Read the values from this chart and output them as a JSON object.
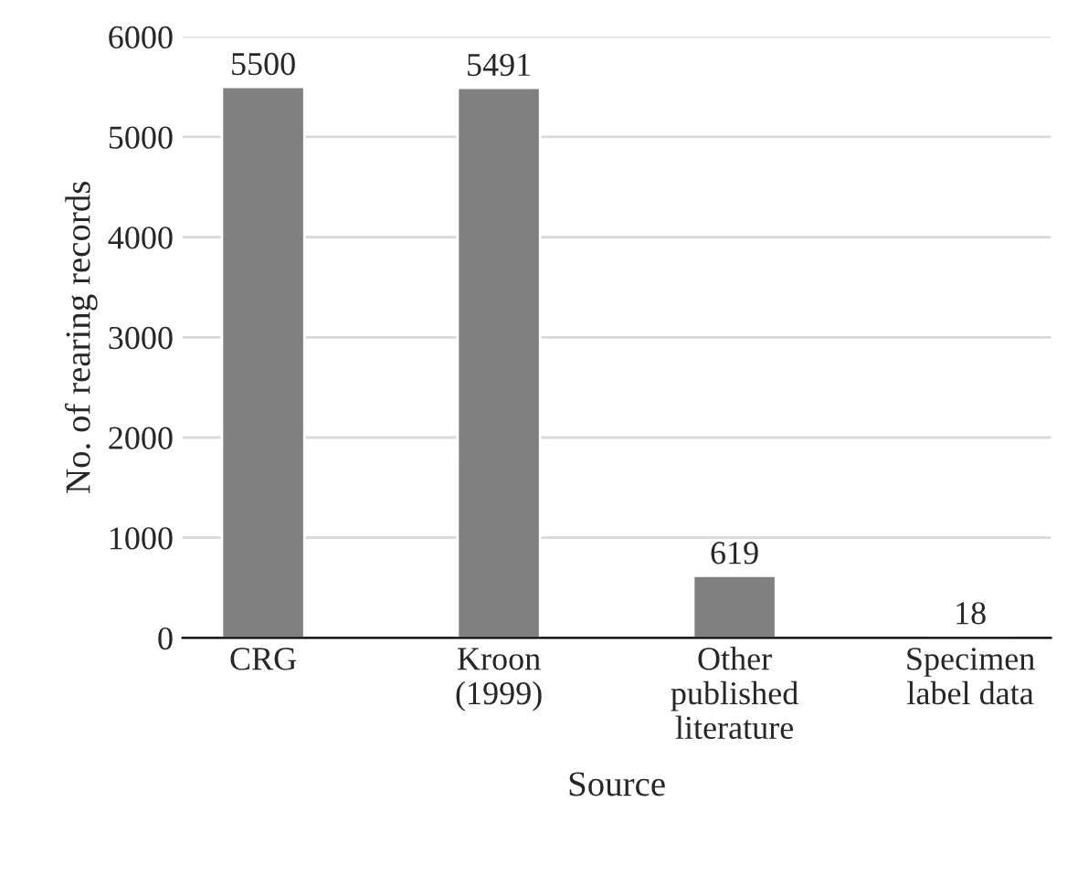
{
  "chart_data": {
    "type": "bar",
    "xlabel": "Source",
    "ylabel": "No. of rearing records",
    "categories": [
      "CRG",
      "Kroon\n(1999)",
      "Other\npublished\nliterature",
      "Specimen\nlabel data"
    ],
    "values": [
      5500,
      5491,
      619,
      18
    ],
    "color": "#808080",
    "ylim": [
      0,
      6000
    ],
    "yticks": [
      0,
      1000,
      2000,
      3000,
      4000,
      5000,
      6000
    ],
    "grid": "y",
    "data_labels": true
  }
}
